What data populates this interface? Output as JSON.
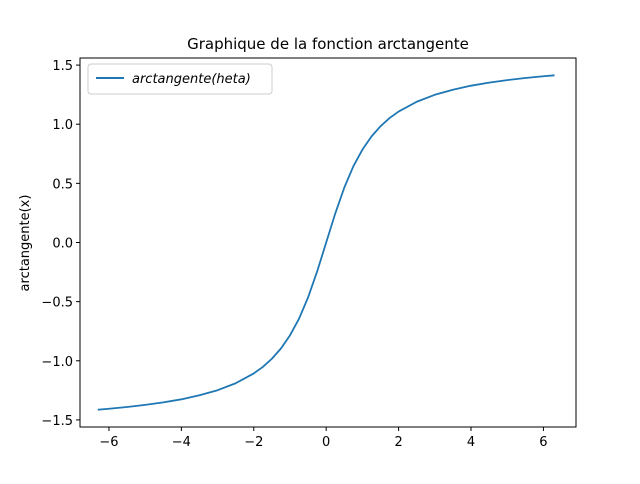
{
  "chart_data": {
    "type": "line",
    "title": "Graphique de la fonction arctangente",
    "xlabel": "",
    "ylabel": "arctangente(x)",
    "xlim": [
      -6.8,
      6.9
    ],
    "ylim": [
      -1.56,
      1.56
    ],
    "xticks": [
      -6,
      -4,
      -2,
      0,
      2,
      4,
      6
    ],
    "xtick_labels": [
      "−6",
      "−4",
      "−2",
      "0",
      "2",
      "4",
      "6"
    ],
    "yticks": [
      -1.5,
      -1.0,
      -0.5,
      0.0,
      0.5,
      1.0,
      1.5
    ],
    "ytick_labels": [
      "−1.5",
      "−1.0",
      "−0.5",
      "0.0",
      "0.5",
      "1.0",
      "1.5"
    ],
    "grid": false,
    "legend_position": "top-left",
    "series": [
      {
        "name": "arctangente(heta)",
        "color": "#1f77b4",
        "x": [
          -6.283,
          -6.0,
          -5.5,
          -5.0,
          -4.5,
          -4.0,
          -3.5,
          -3.0,
          -2.5,
          -2.0,
          -1.75,
          -1.5,
          -1.25,
          -1.0,
          -0.75,
          -0.5,
          -0.25,
          0.0,
          0.25,
          0.5,
          0.75,
          1.0,
          1.25,
          1.5,
          1.75,
          2.0,
          2.5,
          3.0,
          3.5,
          4.0,
          4.5,
          5.0,
          5.5,
          6.0,
          6.283
        ],
        "y": [
          -1.413,
          -1.406,
          -1.391,
          -1.373,
          -1.352,
          -1.326,
          -1.292,
          -1.249,
          -1.19,
          -1.107,
          -1.052,
          -0.983,
          -0.896,
          -0.785,
          -0.644,
          -0.464,
          -0.245,
          0.0,
          0.245,
          0.464,
          0.644,
          0.785,
          0.896,
          0.983,
          1.052,
          1.107,
          1.19,
          1.249,
          1.292,
          1.326,
          1.352,
          1.373,
          1.391,
          1.406,
          1.413
        ]
      }
    ]
  }
}
